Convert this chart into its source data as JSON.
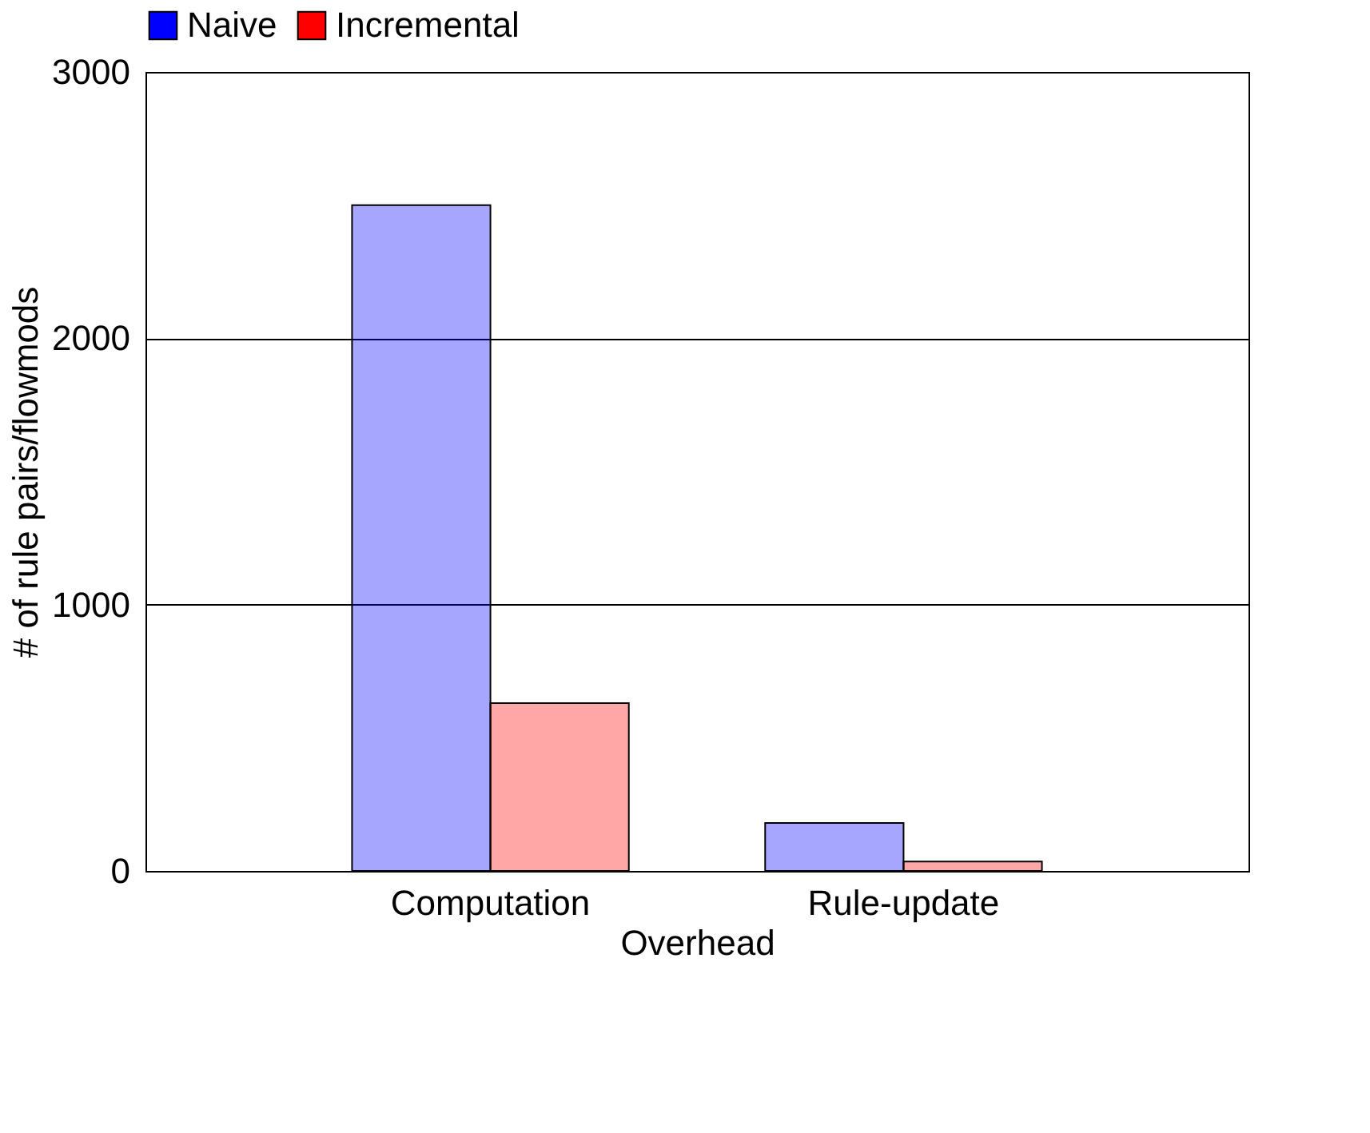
{
  "chart_data": {
    "type": "bar",
    "xlabel": "Overhead",
    "ylabel": "# of rule pairs/flowmods",
    "categories": [
      "Computation",
      "Rule-update"
    ],
    "series": [
      {
        "name": "Naive",
        "color": "#0000ff",
        "values": [
          2500,
          180
        ]
      },
      {
        "name": "Incremental",
        "color": "#ff0000",
        "values": [
          630,
          35
        ]
      }
    ],
    "ylim": [
      0,
      3000
    ],
    "yticks": [
      0,
      1000,
      2000,
      3000
    ],
    "grid": "y",
    "legend": "top"
  }
}
